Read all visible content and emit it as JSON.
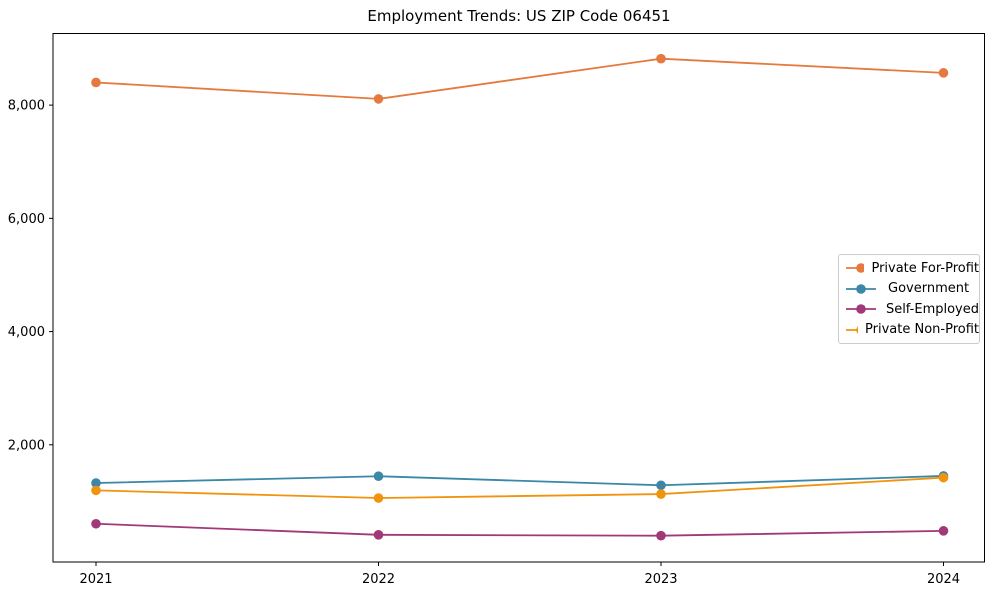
{
  "title": "Employment Trends: US ZIP Code 06451",
  "chart_data": {
    "type": "line",
    "title": "Employment Trends: US ZIP Code 06451",
    "x": [
      2021,
      2022,
      2023,
      2024
    ],
    "xtick_labels": [
      "2021",
      "2022",
      "2023",
      "2024"
    ],
    "yticks": [
      2000,
      4000,
      6000,
      8000
    ],
    "ytick_labels": [
      "2,000",
      "4,000",
      "6,000",
      "8,000"
    ],
    "ylim": [
      -70,
      9265
    ],
    "grid": false,
    "marker": "circle",
    "legend_position": "center-right",
    "series": [
      {
        "name": "Private For-Profit",
        "color": "#e5793e",
        "values": [
          8400,
          8110,
          8820,
          8570
        ]
      },
      {
        "name": "Government",
        "color": "#3a87a8",
        "values": [
          1325,
          1445,
          1285,
          1450
        ]
      },
      {
        "name": "Self-Employed",
        "color": "#a13878",
        "values": [
          605,
          410,
          395,
          480
        ]
      },
      {
        "name": "Private Non-Profit",
        "color": "#f0930d",
        "values": [
          1195,
          1060,
          1130,
          1420
        ]
      }
    ]
  }
}
